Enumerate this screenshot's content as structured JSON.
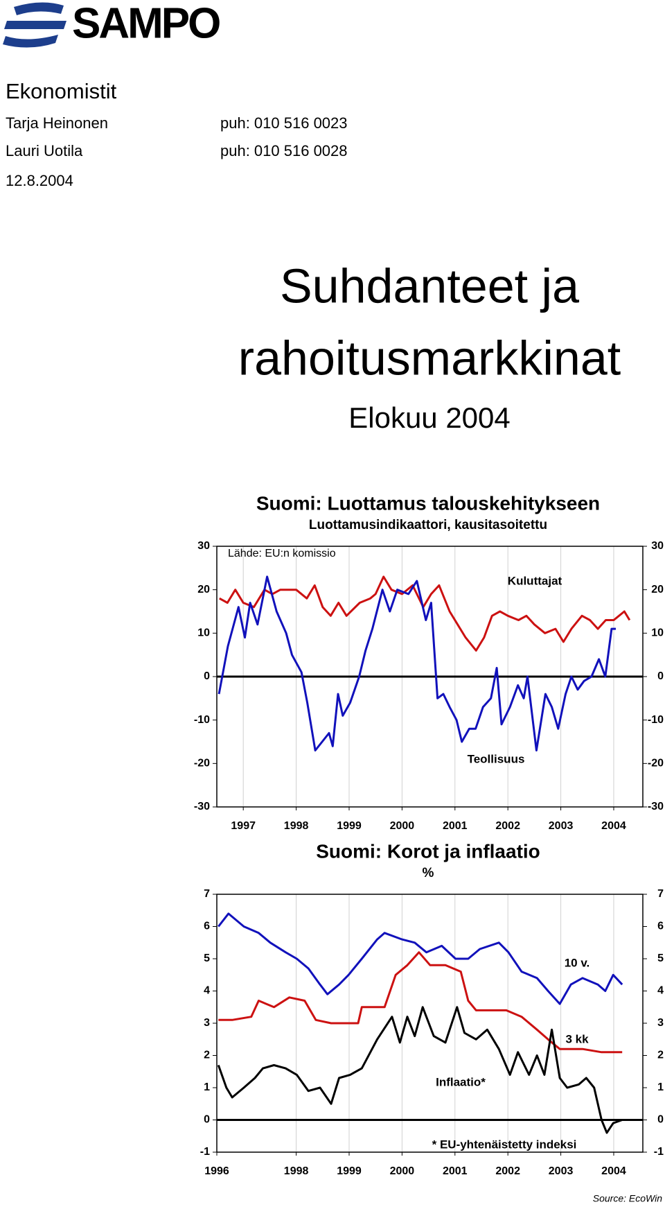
{
  "header": {
    "logo": "SAMPO",
    "section": "Ekonomistit",
    "contacts": [
      {
        "name": "Tarja Heinonen",
        "phone": "puh: 010 516 0023"
      },
      {
        "name": "Lauri Uotila",
        "phone": "puh: 010 516 0028"
      }
    ],
    "date": "12.8.2004"
  },
  "title": [
    "Suhdanteet ja",
    "rahoitusmarkkinat"
  ],
  "subtitle": "Elokuu 2004",
  "chart_data": [
    {
      "type": "line",
      "title": "Suomi: Luottamus talouskehitykseen",
      "subtitle": "Luottamusindikaattori, kausitasoitettu",
      "source": "Lähde: EU:n komissio",
      "xlim": [
        1996.5,
        2004.55
      ],
      "xticks": [
        1997,
        1998,
        1999,
        2000,
        2001,
        2002,
        2003,
        2004
      ],
      "ylim": [
        -30,
        30
      ],
      "yticks": [
        -30,
        -20,
        -10,
        0,
        10,
        20,
        30
      ],
      "grid": "x",
      "series": [
        {
          "name": "Kuluttajat",
          "color": "#cc1111",
          "x": [
            1996.55,
            1996.7,
            1996.85,
            1997.0,
            1997.2,
            1997.4,
            1997.55,
            1997.7,
            1998.0,
            1998.2,
            1998.35,
            1998.5,
            1998.65,
            1998.8,
            1998.95,
            1999.2,
            1999.4,
            1999.5,
            1999.65,
            1999.8,
            2000.0,
            2000.2,
            2000.4,
            2000.55,
            2000.7,
            2000.9,
            2001.05,
            2001.2,
            2001.4,
            2001.55,
            2001.7,
            2001.85,
            2002.0,
            2002.2,
            2002.35,
            2002.5,
            2002.7,
            2002.9,
            2003.05,
            2003.2,
            2003.4,
            2003.55,
            2003.7,
            2003.85,
            2004.0,
            2004.2,
            2004.3
          ],
          "values": [
            18,
            17,
            20,
            17,
            16,
            20,
            19,
            20,
            20,
            18,
            21,
            16,
            14,
            17,
            14,
            17,
            18,
            19,
            23,
            20,
            19,
            21,
            16,
            19,
            21,
            15,
            12,
            9,
            6,
            9,
            14,
            15,
            14,
            13,
            14,
            12,
            10,
            11,
            8,
            11,
            14,
            13,
            11,
            13,
            13,
            15,
            13
          ]
        },
        {
          "name": "Teollisuus",
          "color": "#1111bb",
          "x": [
            1996.54,
            1996.71,
            1996.91,
            1997.03,
            1997.13,
            1997.27,
            1997.45,
            1997.63,
            1997.81,
            1997.92,
            1998.1,
            1998.21,
            1998.36,
            1998.62,
            1998.69,
            1998.79,
            1998.88,
            1999.02,
            1999.19,
            1999.31,
            1999.44,
            1999.63,
            1999.77,
            1999.91,
            2000.12,
            2000.28,
            2000.45,
            2000.55,
            2000.67,
            2000.78,
            2000.9,
            2001.03,
            2001.13,
            2001.27,
            2001.39,
            2001.53,
            2001.68,
            2001.79,
            2001.88,
            2002.04,
            2002.19,
            2002.3,
            2002.37,
            2002.54,
            2002.71,
            2002.83,
            2002.95,
            2003.09,
            2003.2,
            2003.32,
            2003.44,
            2003.58,
            2003.72,
            2003.84,
            2003.96,
            2004.04
          ],
          "values": [
            -4,
            7,
            16,
            9,
            17,
            12,
            23,
            15,
            10,
            5,
            1,
            -6,
            -17,
            -13,
            -16,
            -4,
            -9,
            -6,
            0,
            6,
            11,
            20,
            15,
            20,
            19,
            22,
            13,
            17,
            -5,
            -4,
            -7,
            -10,
            -15,
            -12,
            -12,
            -7,
            -5,
            2,
            -11,
            -7,
            -2,
            -5,
            0,
            -17,
            -4,
            -7,
            -12,
            -4,
            0,
            -3,
            -1,
            0,
            4,
            0,
            11,
            11
          ]
        }
      ]
    },
    {
      "type": "line",
      "title": "Suomi: Korot ja inflaatio",
      "subtitle": "%",
      "footnote": "* EU-yhtenäistetty indeksi",
      "source": "Source: EcoWin",
      "xlim": [
        1996.5,
        2004.55
      ],
      "xticks": [
        1996,
        1998,
        1999,
        2000,
        2001,
        2002,
        2003,
        2004
      ],
      "ylim": [
        -1,
        7
      ],
      "yticks": [
        -1,
        0,
        1,
        2,
        3,
        4,
        5,
        6,
        7
      ],
      "grid": "x",
      "series": [
        {
          "name": "10 v.",
          "color": "#1111bb",
          "x": [
            1996.53,
            1996.72,
            1997.01,
            1997.29,
            1997.51,
            1997.8,
            1998.01,
            1998.23,
            1998.45,
            1998.59,
            1998.81,
            1998.99,
            1999.24,
            1999.53,
            1999.67,
            2000.0,
            2000.24,
            2000.46,
            2000.75,
            2001.01,
            2001.25,
            2001.47,
            2001.83,
            2002.01,
            2002.26,
            2002.55,
            2002.76,
            2002.98,
            2003.19,
            2003.41,
            2003.7,
            2003.84,
            2003.99,
            2004.16
          ],
          "values": [
            6.0,
            6.4,
            6.0,
            5.8,
            5.5,
            5.2,
            5.0,
            4.7,
            4.2,
            3.9,
            4.2,
            4.5,
            5.0,
            5.6,
            5.8,
            5.6,
            5.5,
            5.2,
            5.4,
            5.0,
            5.0,
            5.3,
            5.5,
            5.2,
            4.6,
            4.4,
            4.0,
            3.6,
            4.2,
            4.4,
            4.2,
            4.0,
            4.5,
            4.2
          ]
        },
        {
          "name": "3 kk",
          "color": "#cc1111",
          "x": [
            1996.53,
            1996.79,
            1997.15,
            1997.29,
            1997.58,
            1997.87,
            1998.16,
            1998.37,
            1998.66,
            1999.17,
            1999.24,
            1999.67,
            1999.88,
            2000.1,
            2000.32,
            2000.53,
            2000.82,
            2001.11,
            2001.25,
            2001.4,
            2001.97,
            2002.26,
            2002.55,
            2002.76,
            2002.98,
            2003.41,
            2003.77,
            2003.99,
            2004.16
          ],
          "values": [
            3.1,
            3.1,
            3.2,
            3.7,
            3.5,
            3.8,
            3.7,
            3.1,
            3.0,
            3.0,
            3.5,
            3.5,
            4.5,
            4.8,
            5.2,
            4.8,
            4.8,
            4.6,
            3.7,
            3.4,
            3.4,
            3.2,
            2.8,
            2.5,
            2.2,
            2.2,
            2.1,
            2.1,
            2.1
          ]
        },
        {
          "name": "Inflaatio*",
          "color": "#000000",
          "x": [
            1996.53,
            1996.68,
            1996.79,
            1997.01,
            1997.22,
            1997.37,
            1997.58,
            1997.8,
            1998.01,
            1998.23,
            1998.45,
            1998.66,
            1998.81,
            1999.02,
            1999.24,
            1999.53,
            1999.81,
            1999.96,
            2000.1,
            2000.24,
            2000.39,
            2000.6,
            2000.82,
            2001.04,
            2001.18,
            2001.4,
            2001.61,
            2001.83,
            2002.04,
            2002.19,
            2002.4,
            2002.55,
            2002.69,
            2002.83,
            2002.98,
            2003.12,
            2003.34,
            2003.48,
            2003.63,
            2003.77,
            2003.87,
            2003.99,
            2004.16
          ],
          "values": [
            1.7,
            1.0,
            0.7,
            1.0,
            1.3,
            1.6,
            1.7,
            1.6,
            1.4,
            0.9,
            1.0,
            0.5,
            1.3,
            1.4,
            1.6,
            2.5,
            3.2,
            2.4,
            3.2,
            2.6,
            3.5,
            2.6,
            2.4,
            3.5,
            2.7,
            2.5,
            2.8,
            2.2,
            1.4,
            2.1,
            1.4,
            2.0,
            1.4,
            2.8,
            1.3,
            1.0,
            1.1,
            1.3,
            1.0,
            0.0,
            -0.4,
            -0.1,
            0.0
          ]
        }
      ]
    }
  ]
}
